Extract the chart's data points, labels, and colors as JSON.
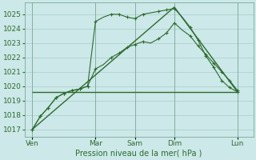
{
  "bg_color": "#cce8e8",
  "grid_major_color": "#aacccc",
  "grid_minor_color": "#bbdddd",
  "line_color": "#2d6b2d",
  "xlabel": "Pression niveau de la mer( hPa )",
  "ylim": [
    1016.5,
    1025.8
  ],
  "yticks": [
    1017,
    1018,
    1019,
    1020,
    1021,
    1022,
    1023,
    1024,
    1025
  ],
  "xlim": [
    0,
    14.5
  ],
  "xtick_positions": [
    0.5,
    4.5,
    7.0,
    9.5,
    13.5
  ],
  "xtick_labels": [
    "Ven",
    "Mar",
    "Sam",
    "Dim",
    "Lun"
  ],
  "vline_positions": [
    0.5,
    4.5,
    7.0,
    9.5,
    13.5
  ],
  "flat_line_x": [
    0.5,
    13.5
  ],
  "flat_line_y": [
    1019.6,
    1019.6
  ],
  "diag_line_x": [
    0.5,
    9.5,
    13.5
  ],
  "diag_line_y": [
    1017.0,
    1025.5,
    1019.6
  ],
  "series_a_x": [
    0.5,
    1.0,
    1.5,
    2.0,
    2.5,
    3.0,
    3.5,
    4.0,
    4.5,
    5.0,
    5.5,
    6.0,
    6.5,
    7.0,
    7.5,
    8.0,
    8.5,
    9.0,
    9.5,
    10.0,
    10.5,
    11.0,
    11.5,
    12.0,
    12.5,
    13.0,
    13.5
  ],
  "series_a_y": [
    1017.0,
    1017.9,
    1018.5,
    1019.2,
    1019.5,
    1019.7,
    1019.8,
    1020.0,
    1021.2,
    1021.5,
    1022.0,
    1022.3,
    1022.7,
    1022.9,
    1023.1,
    1023.0,
    1023.3,
    1023.7,
    1024.4,
    1023.9,
    1023.5,
    1022.8,
    1022.2,
    1021.6,
    1021.0,
    1020.4,
    1019.7
  ],
  "series_b_x": [
    0.5,
    1.0,
    1.5,
    2.0,
    2.5,
    3.0,
    3.5,
    4.0,
    4.5,
    5.0,
    5.5,
    6.0,
    6.5,
    7.0,
    7.5,
    8.0,
    8.5,
    9.0,
    9.5,
    10.0,
    10.5,
    11.0,
    11.5,
    12.0,
    12.5,
    13.0,
    13.5
  ],
  "series_b_y": [
    1017.0,
    1017.9,
    1018.5,
    1019.2,
    1019.5,
    1019.7,
    1019.8,
    1020.0,
    1024.5,
    1024.8,
    1025.0,
    1025.0,
    1024.8,
    1024.7,
    1025.0,
    1025.1,
    1025.2,
    1025.3,
    1025.4,
    1024.8,
    1024.1,
    1023.2,
    1022.1,
    1021.3,
    1020.4,
    1019.9,
    1019.6
  ],
  "marker_a_x": [
    0.5,
    1.0,
    1.5,
    2.0,
    2.5,
    3.0,
    3.5,
    4.0,
    4.5,
    5.5,
    6.0,
    6.5,
    7.0,
    7.5,
    8.5,
    9.0,
    9.5,
    10.5,
    11.0,
    11.5,
    12.0,
    12.5,
    13.0,
    13.5
  ],
  "marker_a_y": [
    1017.0,
    1017.9,
    1018.5,
    1019.2,
    1019.5,
    1019.7,
    1019.8,
    1020.0,
    1021.2,
    1022.0,
    1022.3,
    1022.7,
    1022.9,
    1023.1,
    1023.3,
    1023.7,
    1024.4,
    1023.5,
    1022.8,
    1022.2,
    1021.6,
    1021.0,
    1020.4,
    1019.7
  ],
  "marker_b_x": [
    0.5,
    1.0,
    1.5,
    2.0,
    2.5,
    3.0,
    3.5,
    4.0,
    4.5,
    5.5,
    6.0,
    6.5,
    7.0,
    7.5,
    8.5,
    9.0,
    9.5,
    10.5,
    11.0,
    11.5,
    12.0,
    12.5,
    13.0,
    13.5
  ],
  "marker_b_y": [
    1017.0,
    1017.9,
    1018.5,
    1019.2,
    1019.5,
    1019.7,
    1019.8,
    1020.0,
    1024.5,
    1025.0,
    1025.0,
    1024.8,
    1024.7,
    1025.0,
    1025.2,
    1025.3,
    1025.4,
    1024.1,
    1023.2,
    1022.1,
    1021.3,
    1020.4,
    1019.9,
    1019.6
  ]
}
